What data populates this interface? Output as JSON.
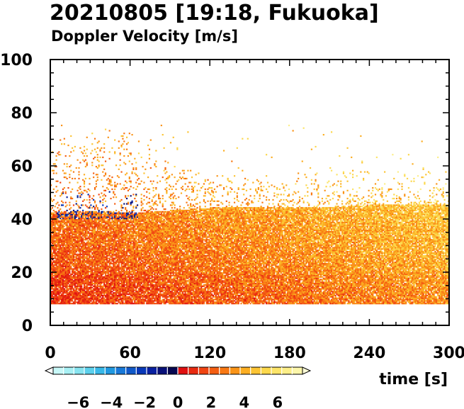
{
  "chart_data": {
    "type": "heatmap",
    "title": "20210805 [19:18, Fukuoka]",
    "subtitle": "Doppler Velocity [m/s]",
    "xlabel": "time [s]",
    "ylabel": "",
    "xlim": [
      0,
      300
    ],
    "ylim": [
      0,
      100
    ],
    "x_ticks": [
      0,
      60,
      120,
      180,
      240,
      300
    ],
    "y_ticks": [
      0,
      20,
      40,
      60,
      80,
      100
    ],
    "x_tick_labels": [
      "0",
      "60",
      "120",
      "180",
      "240",
      "300"
    ],
    "y_tick_labels": [
      "0",
      "20",
      "40",
      "60",
      "80",
      "100"
    ],
    "grid": false,
    "data_range_height": [
      8,
      76
    ],
    "echo_top_profile": {
      "time": [
        0,
        30,
        60,
        90,
        120,
        150,
        180,
        210,
        240,
        270,
        300
      ],
      "solid_top": [
        42,
        43,
        42,
        43,
        44,
        44,
        44,
        44,
        45,
        45,
        45
      ],
      "scattered_top": [
        72,
        75,
        76,
        62,
        60,
        58,
        57,
        63,
        60,
        59,
        60
      ]
    },
    "negative_patch": {
      "time_range": [
        5,
        65
      ],
      "height_range": [
        40,
        50
      ],
      "value": -1.5
    },
    "colorbar": {
      "range": [
        -7.5,
        7.5
      ],
      "tick_values": [
        -6,
        -4,
        -2,
        0,
        2,
        4,
        6
      ],
      "tick_labels": [
        "−6",
        "−4",
        "−2",
        "0",
        "2",
        "4",
        "6"
      ],
      "colors": [
        "#c8f8f8",
        "#a8f0f4",
        "#88e4f0",
        "#5cd0ec",
        "#38b8e8",
        "#2098e0",
        "#1878d8",
        "#1058c8",
        "#0838b8",
        "#0820a0",
        "#081078",
        "#060650",
        "#e01010",
        "#e82a10",
        "#f04412",
        "#f45e12",
        "#f87814",
        "#fa9418",
        "#fcae22",
        "#fcc434",
        "#fcd84c",
        "#fce468",
        "#fcee88",
        "#fcf6aa"
      ]
    }
  }
}
